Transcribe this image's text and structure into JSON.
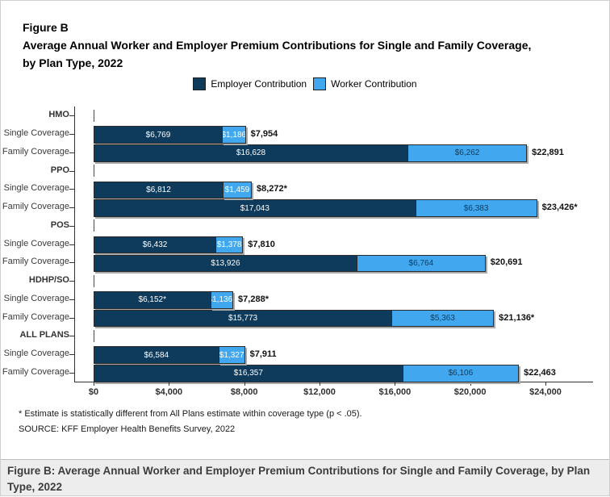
{
  "page": {
    "figure_label": "Figure B",
    "title_line1": "Average Annual Worker and Employer Premium Contributions for Single and Family Coverage,",
    "title_line2": "by Plan Type, 2022",
    "footnote": "* Estimate is statistically different from All Plans estimate within coverage type (p < .05).",
    "source": "SOURCE: KFF Employer Health Benefits Survey, 2022",
    "caption": "Figure B: Average Annual Worker and Employer Premium Contributions for Single and Family Coverage, by Plan Type, 2022"
  },
  "colors": {
    "employer": "#0e3a5c",
    "worker": "#41a8f0",
    "bar_border": "#2b2b2b",
    "axis": "#333333",
    "label_on_dark": "#ffffff",
    "label_on_light_family": "#0e3a5c",
    "label_on_light_single": "#ffffff"
  },
  "legend": [
    {
      "label": "Employer Contribution",
      "color": "#0e3a5c"
    },
    {
      "label": "Worker Contribution",
      "color": "#41a8f0"
    }
  ],
  "chart_data": {
    "type": "bar",
    "orientation": "horizontal",
    "stacked": true,
    "title": "Average Annual Worker and Employer Premium Contributions for Single and Family Coverage, by Plan Type, 2022",
    "xlabel": "",
    "ylabel": "",
    "xlim": [
      0,
      24000
    ],
    "x_tick_values": [
      0,
      4000,
      8000,
      12000,
      16000,
      20000,
      24000
    ],
    "x_tick_labels": [
      "$0",
      "$4,000",
      "$8,000",
      "$12,000",
      "$16,000",
      "$20,000",
      "$24,000"
    ],
    "series_names": [
      "Employer Contribution",
      "Worker Contribution"
    ],
    "legend_position": "top-center",
    "grid": false,
    "groups": [
      {
        "plan": "HMO",
        "rows": [
          {
            "coverage": "single",
            "label": "Single Coverage",
            "employer": 6769,
            "worker": 1186,
            "total": 7954,
            "employer_label": "$6,769",
            "worker_label": "$1,186",
            "total_label": "$7,954"
          },
          {
            "coverage": "family",
            "label": "Family Coverage",
            "employer": 16628,
            "worker": 6262,
            "total": 22891,
            "employer_label": "$16,628",
            "worker_label": "$6,262",
            "total_label": "$22,891"
          }
        ]
      },
      {
        "plan": "PPO",
        "rows": [
          {
            "coverage": "single",
            "label": "Single Coverage",
            "employer": 6812,
            "worker": 1459,
            "total": 8272,
            "employer_label": "$6,812",
            "worker_label": "$1,459",
            "total_label": "$8,272*"
          },
          {
            "coverage": "family",
            "label": "Family Coverage",
            "employer": 17043,
            "worker": 6383,
            "total": 23426,
            "employer_label": "$17,043",
            "worker_label": "$6,383",
            "total_label": "$23,426*"
          }
        ]
      },
      {
        "plan": "POS",
        "rows": [
          {
            "coverage": "single",
            "label": "Single Coverage",
            "employer": 6432,
            "worker": 1378,
            "total": 7810,
            "employer_label": "$6,432",
            "worker_label": "$1,378",
            "total_label": "$7,810"
          },
          {
            "coverage": "family",
            "label": "Family Coverage",
            "employer": 13926,
            "worker": 6764,
            "total": 20691,
            "employer_label": "$13,926",
            "worker_label": "$6,764",
            "total_label": "$20,691"
          }
        ]
      },
      {
        "plan": "HDHP/SO",
        "rows": [
          {
            "coverage": "single",
            "label": "Single Coverage",
            "employer": 6152,
            "worker": 1136,
            "total": 7288,
            "employer_label": "$6,152*",
            "worker_label": "$1,136*",
            "total_label": "$7,288*"
          },
          {
            "coverage": "family",
            "label": "Family Coverage",
            "employer": 15773,
            "worker": 5363,
            "total": 21136,
            "employer_label": "$15,773",
            "worker_label": "$5,363",
            "total_label": "$21,136*"
          }
        ]
      },
      {
        "plan": "ALL PLANS",
        "rows": [
          {
            "coverage": "single",
            "label": "Single Coverage",
            "employer": 6584,
            "worker": 1327,
            "total": 7911,
            "employer_label": "$6,584",
            "worker_label": "$1,327",
            "total_label": "$7,911"
          },
          {
            "coverage": "family",
            "label": "Family Coverage",
            "employer": 16357,
            "worker": 6106,
            "total": 22463,
            "employer_label": "$16,357",
            "worker_label": "$6,106",
            "total_label": "$22,463"
          }
        ]
      }
    ]
  }
}
